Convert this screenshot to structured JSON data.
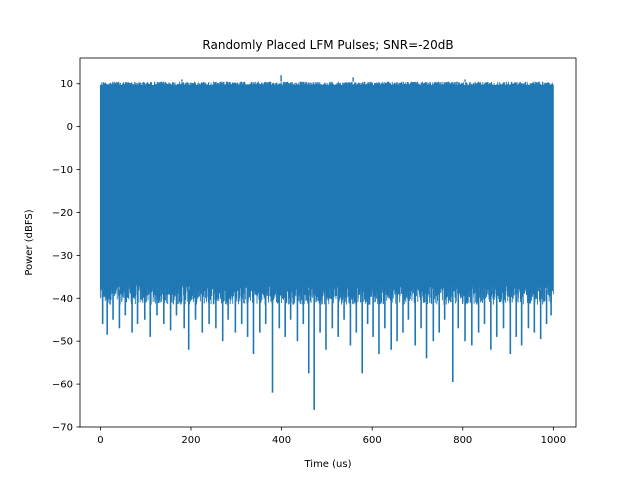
{
  "chart_data": {
    "type": "line",
    "title": "Randomly Placed LFM Pulses; SNR=-20dB",
    "xlabel": "Time (us)",
    "ylabel": "Power (dBFS)",
    "xlim": [
      -45,
      1050
    ],
    "ylim": [
      -70,
      16
    ],
    "xticks": [
      0,
      200,
      400,
      600,
      800,
      1000
    ],
    "yticks": [
      -70,
      -60,
      -50,
      -40,
      -30,
      -20,
      -10,
      0,
      10
    ],
    "grid": false,
    "legend": "none",
    "series": [
      {
        "color": "#1f77b4",
        "x_range": [
          0,
          1000
        ],
        "upper_envelope": 10.5,
        "lower_envelope": -40,
        "dips": [
          [
            5,
            -46
          ],
          [
            15,
            -48.5
          ],
          [
            28,
            -45
          ],
          [
            42,
            -47
          ],
          [
            55,
            -44
          ],
          [
            70,
            -48
          ],
          [
            82,
            -46
          ],
          [
            98,
            -45
          ],
          [
            110,
            -49
          ],
          [
            125,
            -44
          ],
          [
            140,
            -46
          ],
          [
            155,
            -47.5
          ],
          [
            168,
            -44
          ],
          [
            185,
            -47
          ],
          [
            195,
            -52
          ],
          [
            210,
            -45
          ],
          [
            225,
            -48
          ],
          [
            240,
            -46
          ],
          [
            255,
            -47
          ],
          [
            270,
            -50
          ],
          [
            282,
            -45
          ],
          [
            298,
            -48
          ],
          [
            312,
            -46
          ],
          [
            325,
            -49
          ],
          [
            338,
            -53
          ],
          [
            352,
            -48
          ],
          [
            365,
            -46
          ],
          [
            380,
            -62
          ],
          [
            395,
            -47
          ],
          [
            408,
            -49
          ],
          [
            420,
            -45
          ],
          [
            435,
            -50
          ],
          [
            448,
            -46
          ],
          [
            460,
            -57.5
          ],
          [
            472,
            -66
          ],
          [
            485,
            -48
          ],
          [
            498,
            -52
          ],
          [
            512,
            -47
          ],
          [
            525,
            -49
          ],
          [
            538,
            -45
          ],
          [
            552,
            -51
          ],
          [
            565,
            -48
          ],
          [
            578,
            -57.5
          ],
          [
            590,
            -46
          ],
          [
            602,
            -49
          ],
          [
            615,
            -53
          ],
          [
            628,
            -47
          ],
          [
            642,
            -52
          ],
          [
            655,
            -50
          ],
          [
            668,
            -48
          ],
          [
            680,
            -45
          ],
          [
            695,
            -51
          ],
          [
            708,
            -47
          ],
          [
            720,
            -54
          ],
          [
            735,
            -50
          ],
          [
            748,
            -48
          ],
          [
            760,
            -45
          ],
          [
            778,
            -59.5
          ],
          [
            790,
            -47
          ],
          [
            805,
            -50
          ],
          [
            820,
            -51
          ],
          [
            835,
            -48
          ],
          [
            848,
            -46
          ],
          [
            862,
            -52
          ],
          [
            875,
            -49
          ],
          [
            890,
            -47
          ],
          [
            905,
            -53
          ],
          [
            918,
            -49
          ],
          [
            930,
            -51
          ],
          [
            945,
            -47
          ],
          [
            958,
            -48
          ],
          [
            972,
            -49.5
          ],
          [
            985,
            -46
          ],
          [
            995,
            -44
          ]
        ],
        "peaks": [
          [
            180,
            11
          ],
          [
            399,
            12
          ],
          [
            558,
            11.5
          ],
          [
            805,
            11
          ]
        ]
      }
    ]
  }
}
